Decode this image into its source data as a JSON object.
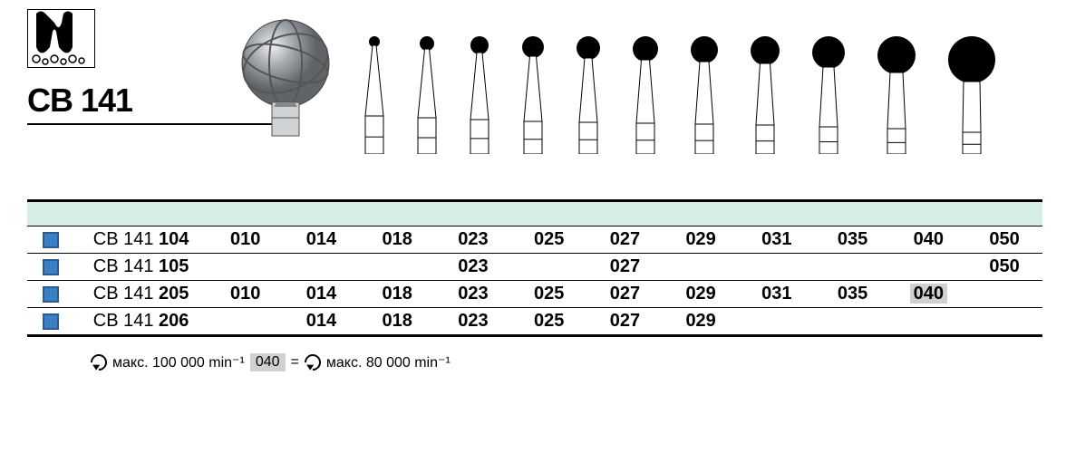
{
  "product": {
    "name": "CB 141"
  },
  "burs": {
    "type": "round-bur-silhouettes",
    "big_bur_diameter": 90,
    "items": [
      {
        "diameter": 12,
        "neck_width": 4,
        "shank_height": 42
      },
      {
        "diameter": 16,
        "neck_width": 5,
        "shank_height": 40
      },
      {
        "diameter": 20,
        "neck_width": 6,
        "shank_height": 38
      },
      {
        "diameter": 24,
        "neck_width": 7,
        "shank_height": 36
      },
      {
        "diameter": 26,
        "neck_width": 8,
        "shank_height": 35
      },
      {
        "diameter": 28,
        "neck_width": 9,
        "shank_height": 34
      },
      {
        "diameter": 30,
        "neck_width": 10,
        "shank_height": 33
      },
      {
        "diameter": 32,
        "neck_width": 11,
        "shank_height": 32
      },
      {
        "diameter": 36,
        "neck_width": 12,
        "shank_height": 30
      },
      {
        "diameter": 42,
        "neck_width": 14,
        "shank_height": 28
      },
      {
        "diameter": 52,
        "neck_width": 18,
        "shank_height": 24
      }
    ]
  },
  "table": {
    "header_band_color": "#d5ede3",
    "marker_color": "#3b7fc4",
    "rows": [
      {
        "prefix": "CB 141",
        "suffix": "104",
        "sizes": [
          "010",
          "014",
          "018",
          "023",
          "025",
          "027",
          "029",
          "031",
          "035",
          "040",
          "050"
        ]
      },
      {
        "prefix": "CB 141",
        "suffix": "105",
        "sizes": [
          "",
          "",
          "",
          "023",
          "",
          "027",
          "",
          "",
          "",
          "",
          "050"
        ]
      },
      {
        "prefix": "CB 141",
        "suffix": "205",
        "sizes": [
          "010",
          "014",
          "018",
          "023",
          "025",
          "027",
          "029",
          "031",
          "035",
          "040*",
          ""
        ]
      },
      {
        "prefix": "CB 141",
        "suffix": "206",
        "sizes": [
          "",
          "014",
          "018",
          "023",
          "025",
          "027",
          "029",
          "",
          "",
          "",
          ""
        ]
      }
    ]
  },
  "footnote": {
    "left_text": "макс. 100 000 min⁻¹",
    "highlight": "040",
    "equals": "=",
    "right_text": "макс. 80 000 min⁻¹"
  }
}
